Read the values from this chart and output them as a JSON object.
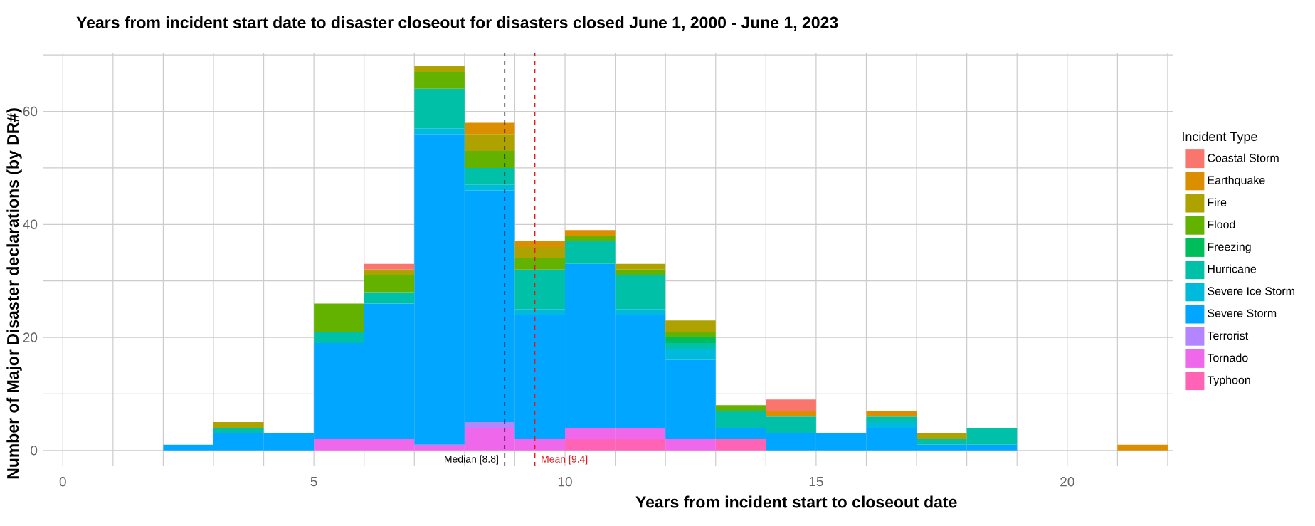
{
  "chart_data": {
    "type": "bar",
    "title": "Years from incident start date to disaster closeout for disasters closed June 1, 2000 - June 1, 2023",
    "xlabel": "Years from incident start to closeout date",
    "ylabel": "Number of Major Disaster declarations (by DR#)",
    "legend_title": "Incident Type",
    "stacked": true,
    "x": [
      2.5,
      3.5,
      4.5,
      5.5,
      6.5,
      7.5,
      8.5,
      9.5,
      10.5,
      11.5,
      12.5,
      13.5,
      14.5,
      15.5,
      16.5,
      17.5,
      18.5,
      19.5,
      20.5,
      21.5
    ],
    "series": [
      {
        "name": "Typhoon",
        "color": "#ff63b6",
        "values": [
          0,
          0,
          0,
          0,
          0,
          0,
          0,
          0,
          2,
          2,
          0,
          2,
          0,
          0,
          0,
          0,
          0,
          0,
          0,
          0
        ]
      },
      {
        "name": "Tornado",
        "color": "#ef67eb",
        "values": [
          0,
          0,
          0,
          2,
          2,
          1,
          4,
          2,
          2,
          2,
          2,
          0,
          0,
          0,
          0,
          0,
          0,
          0,
          0,
          0
        ]
      },
      {
        "name": "Terrorist",
        "color": "#b385ff",
        "values": [
          0,
          0,
          0,
          0,
          0,
          0,
          1,
          0,
          0,
          0,
          0,
          0,
          0,
          0,
          0,
          0,
          0,
          0,
          0,
          0
        ]
      },
      {
        "name": "Severe Storm",
        "color": "#00a6ff",
        "values": [
          1,
          3,
          3,
          17,
          24,
          55,
          41,
          22,
          29,
          20,
          14,
          2,
          3,
          3,
          4,
          1,
          1,
          0,
          0,
          0
        ]
      },
      {
        "name": "Severe Ice Storm",
        "color": "#00bade",
        "values": [
          0,
          0,
          0,
          0,
          0,
          1,
          1,
          1,
          0,
          1,
          2,
          0,
          0,
          0,
          1,
          0,
          0,
          0,
          0,
          0
        ]
      },
      {
        "name": "Hurricane",
        "color": "#00c1a7",
        "values": [
          0,
          1,
          0,
          2,
          2,
          7,
          3,
          7,
          4,
          6,
          1,
          3,
          3,
          0,
          1,
          1,
          3,
          0,
          0,
          0
        ]
      },
      {
        "name": "Freezing",
        "color": "#00bd5c",
        "values": [
          0,
          0,
          0,
          0,
          0,
          0,
          0,
          0,
          0,
          0,
          1,
          0,
          0,
          0,
          0,
          0,
          0,
          0,
          0,
          0
        ]
      },
      {
        "name": "Flood",
        "color": "#64b200",
        "values": [
          0,
          0,
          0,
          5,
          3,
          3,
          3,
          2,
          1,
          1,
          1,
          1,
          0,
          0,
          0,
          0,
          0,
          0,
          0,
          0
        ]
      },
      {
        "name": "Fire",
        "color": "#aea200",
        "values": [
          0,
          1,
          0,
          0,
          1,
          1,
          3,
          2,
          0,
          1,
          2,
          0,
          0,
          0,
          0,
          1,
          0,
          0,
          0,
          0
        ]
      },
      {
        "name": "Earthquake",
        "color": "#db8e00",
        "values": [
          0,
          0,
          0,
          0,
          0,
          0,
          2,
          1,
          1,
          0,
          0,
          0,
          1,
          0,
          1,
          0,
          0,
          0,
          0,
          1
        ]
      },
      {
        "name": "Coastal Storm",
        "color": "#f8766d",
        "values": [
          0,
          0,
          0,
          0,
          1,
          0,
          0,
          0,
          0,
          0,
          0,
          0,
          2,
          0,
          0,
          0,
          0,
          0,
          0,
          0
        ]
      }
    ],
    "xlim": [
      -0.4,
      22.1
    ],
    "xticks": [
      0,
      {
        "value": 1,
        "label": null
      },
      {
        "value": 2,
        "label": null
      },
      {
        "value": 3,
        "label": null
      },
      {
        "value": 4,
        "label": null
      },
      5,
      {
        "value": 6,
        "label": null
      },
      {
        "value": 7,
        "label": null
      },
      {
        "value": 8,
        "label": null
      },
      {
        "value": 9,
        "label": null
      },
      10,
      {
        "value": 11,
        "label": null
      },
      {
        "value": 12,
        "label": null
      },
      {
        "value": 13,
        "label": null
      },
      {
        "value": 14,
        "label": null
      },
      15,
      {
        "value": 16,
        "label": null
      },
      {
        "value": 17,
        "label": null
      },
      {
        "value": 18,
        "label": null
      },
      {
        "value": 19,
        "label": null
      },
      20,
      {
        "value": 21,
        "label": null
      },
      {
        "value": 22,
        "label": null
      }
    ],
    "ylim": [
      -2.8,
      70.4
    ],
    "yticks": [
      0,
      {
        "value": 10,
        "label": null
      },
      20,
      {
        "value": 30,
        "label": null
      },
      40,
      {
        "value": 50,
        "label": null
      },
      60,
      {
        "value": 70,
        "label": null
      }
    ],
    "ref_lines": [
      {
        "axis": "x",
        "value": 8.8,
        "label": "Median [8.8]",
        "color": "#000000",
        "line_style": "dashed"
      },
      {
        "axis": "x",
        "value": 9.4,
        "label": "Mean [9.4]",
        "color": "#e41a1c",
        "line_style": "dashed"
      }
    ],
    "grid": true,
    "legend": "right"
  }
}
